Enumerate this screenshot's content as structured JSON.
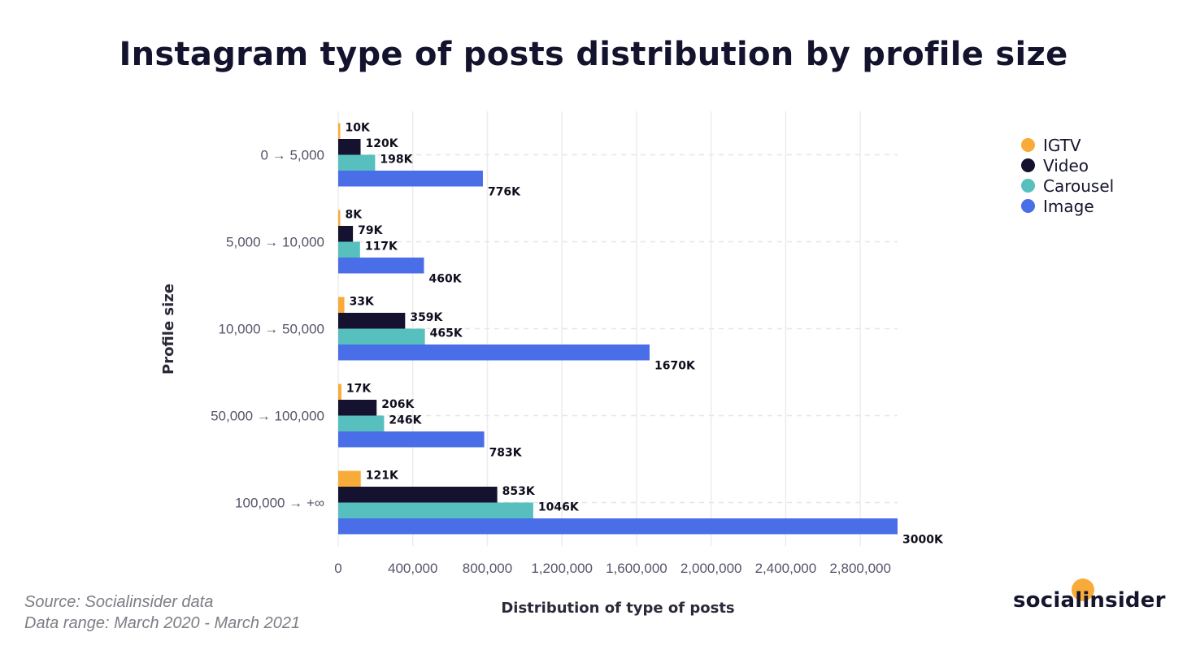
{
  "title": "Instagram type of posts distribution by profile size",
  "source_line1": "Source: Socialinsider data",
  "source_line2": "Data range: March 2020 - March 2021",
  "brand": "socialinsider",
  "colors": {
    "IGTV": "#f8ab39",
    "Video": "#15122f",
    "Carousel": "#57bfbd",
    "Image": "#4a6ee7"
  },
  "chart_data": {
    "type": "bar",
    "orientation": "horizontal",
    "title": "Instagram type of posts distribution by profile size",
    "xlabel": "Distribution of type of posts",
    "ylabel": "Profile size",
    "categories": [
      "0 → 5,000",
      "5,000 → 10,000",
      "10,000 → 50,000",
      "50,000 → 100,000",
      "100,000 → +∞"
    ],
    "xlim": [
      0,
      3000000
    ],
    "xticks": [
      0,
      400000,
      800000,
      1200000,
      1600000,
      2000000,
      2400000,
      2800000
    ],
    "xtick_labels": [
      "0",
      "400,000",
      "800,000",
      "1,200,000",
      "1,600,000",
      "2,000,000",
      "2,400,000",
      "2,800,000"
    ],
    "grid": "vertical",
    "legend_position": "top-right",
    "series": [
      {
        "name": "IGTV",
        "values": [
          10000,
          8000,
          33000,
          17000,
          121000
        ],
        "labels": [
          "10K",
          "8K",
          "33K",
          "17K",
          "121K"
        ]
      },
      {
        "name": "Video",
        "values": [
          120000,
          79000,
          359000,
          206000,
          853000
        ],
        "labels": [
          "120K",
          "79K",
          "359K",
          "206K",
          "853K"
        ]
      },
      {
        "name": "Carousel",
        "values": [
          198000,
          117000,
          465000,
          246000,
          1046000
        ],
        "labels": [
          "198K",
          "117K",
          "465K",
          "246K",
          "1046K"
        ]
      },
      {
        "name": "Image",
        "values": [
          776000,
          460000,
          1670000,
          783000,
          3000000
        ],
        "labels": [
          "776K",
          "460K",
          "1670K",
          "783K",
          "3000K"
        ]
      }
    ]
  }
}
